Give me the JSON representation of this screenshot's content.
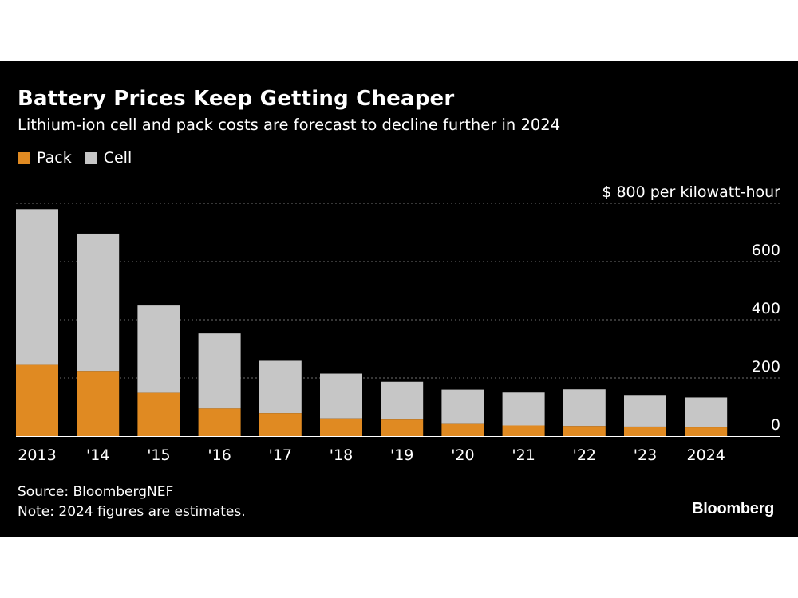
{
  "title": "Battery Prices Keep Getting Cheaper",
  "subtitle": "Lithium-ion cell and pack costs are forecast to decline further in 2024",
  "legend": [
    {
      "label": "Pack",
      "color": "#e08a22"
    },
    {
      "label": "Cell",
      "color": "#c6c6c6"
    }
  ],
  "axis_unit_label": "$ 800 per kilowatt-hour",
  "source": "Source: BloombergNEF",
  "note": "Note: 2024 figures are estimates.",
  "brand": "Bloomberg",
  "chart_data": {
    "type": "bar",
    "stacked": true,
    "title": "Battery Prices Keep Getting Cheaper",
    "subtitle": "Lithium-ion cell and pack costs are forecast to decline further in 2024",
    "ylabel": "$ per kilowatt-hour",
    "ylim": [
      0,
      800
    ],
    "yticks": [
      0,
      200,
      400,
      600,
      800
    ],
    "ytick_labels": [
      "0",
      "200",
      "400",
      "600",
      "$ 800 per kilowatt-hour"
    ],
    "grid": true,
    "categories": [
      "2013",
      "'14",
      "'15",
      "'16",
      "'17",
      "'18",
      "'19",
      "'20",
      "'21",
      "'22",
      "'23",
      "2024"
    ],
    "series": [
      {
        "name": "Pack",
        "color": "#e08a22",
        "values": [
          245,
          224,
          149,
          95,
          79,
          61,
          57,
          42,
          37,
          35,
          33,
          30
        ]
      },
      {
        "name": "Cell",
        "color": "#c6c6c6",
        "values": [
          535,
          472,
          300,
          258,
          180,
          154,
          130,
          118,
          113,
          126,
          106,
          103
        ]
      }
    ]
  }
}
